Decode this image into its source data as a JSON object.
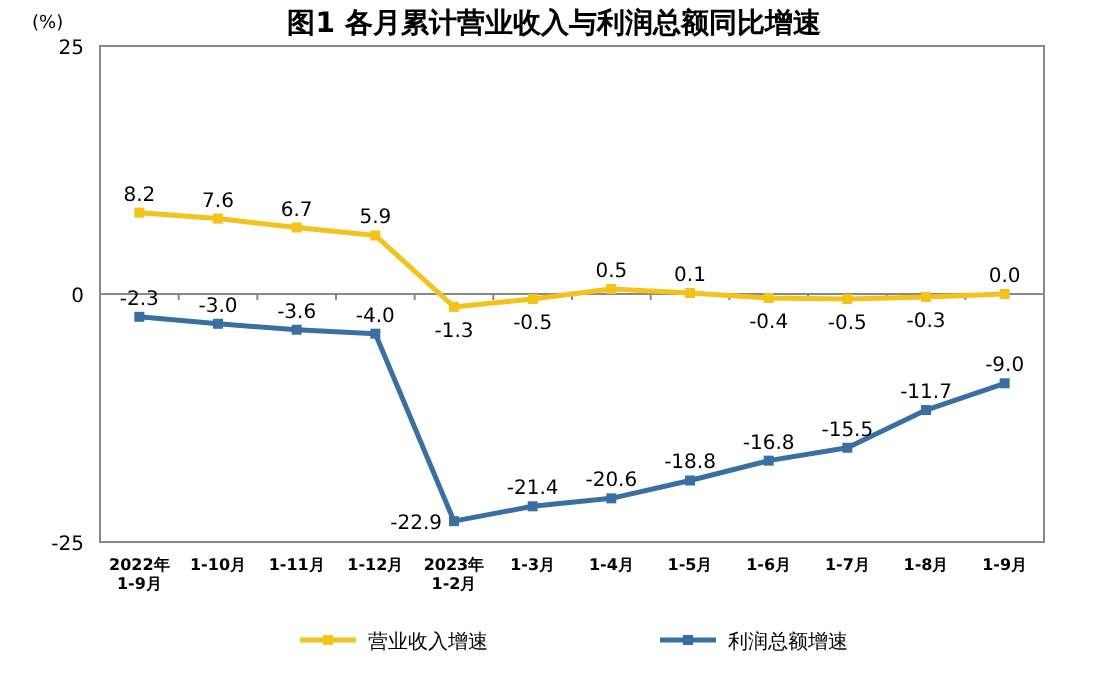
{
  "chart_data": {
    "type": "line",
    "title": "图1  各月累计营业收入与利润总额同比增速",
    "ylabel": "(%)",
    "categories": [
      "2022年\n1-9月",
      "1-10月",
      "1-11月",
      "1-12月",
      "2023年\n1-2月",
      "1-3月",
      "1-4月",
      "1-5月",
      "1-6月",
      "1-7月",
      "1-8月",
      "1-9月"
    ],
    "series": [
      {
        "name": "营业收入增速",
        "color": "#f2c31b",
        "values": [
          8.2,
          7.6,
          6.7,
          5.9,
          -1.3,
          -0.5,
          0.5,
          0.1,
          -0.4,
          -0.5,
          -0.3,
          0.0
        ],
        "value_labels": [
          "8.2",
          "7.6",
          "6.7",
          "5.9",
          "-1.3",
          "-0.5",
          "0.5",
          "0.1",
          "-0.4",
          "-0.5",
          "-0.3",
          "0.0"
        ]
      },
      {
        "name": "利润总额增速",
        "color": "#3a6fa3",
        "values": [
          -2.3,
          -3.0,
          -3.6,
          -4.0,
          -22.9,
          -21.4,
          -20.6,
          -18.8,
          -16.8,
          -15.5,
          -11.7,
          -9.0
        ],
        "value_labels": [
          "-2.3",
          "-3.0",
          "-3.6",
          "-4.0",
          "-22.9",
          "-21.4",
          "-20.6",
          "-18.8",
          "-16.8",
          "-15.5",
          "-11.7",
          "-9.0"
        ]
      }
    ],
    "ylim": [
      -25,
      25
    ],
    "yticks": [
      -25,
      0,
      25
    ],
    "legend": "bottom",
    "marker": "square",
    "line_style": "solid"
  }
}
